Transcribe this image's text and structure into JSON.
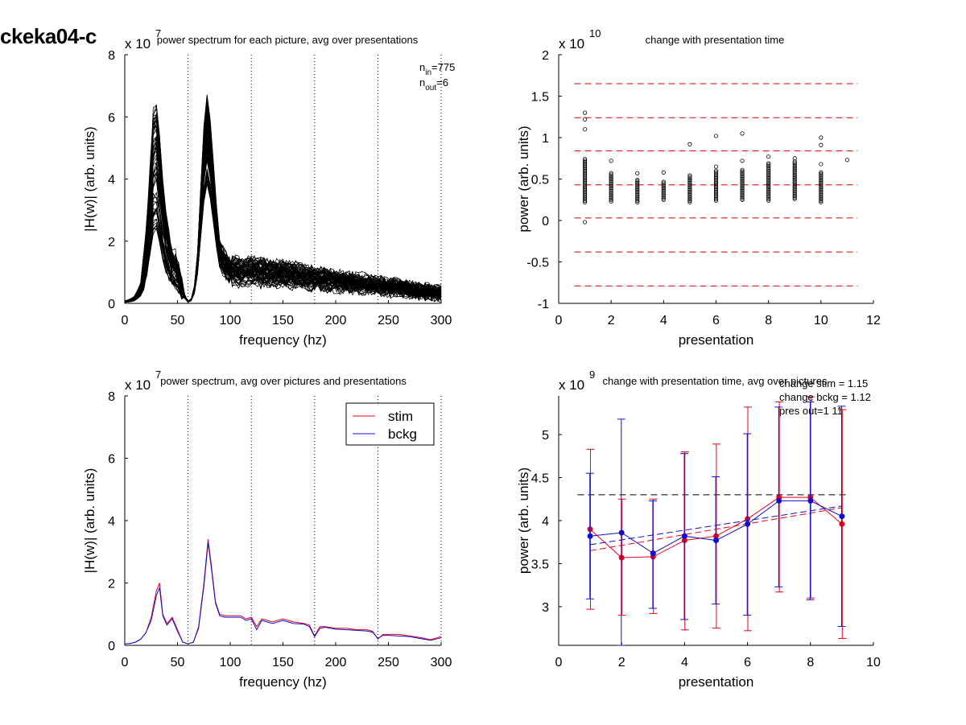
{
  "figure": {
    "title": "ckeka04-c",
    "colors": {
      "stim": "#e8001c",
      "bckg": "#1010cc",
      "ref": "#e00000",
      "axis": "#000000"
    }
  },
  "chart_data": [
    {
      "id": "p1",
      "type": "line",
      "title": "power spectrum for each picture, avg over presentations",
      "xlabel": "frequency (hz)",
      "ylabel": "|H(w)| (arb. units)",
      "exponent_label": "x 10",
      "exponent": "7",
      "xlim": [
        0,
        300
      ],
      "ylim": [
        0,
        8
      ],
      "xticks": [
        0,
        50,
        100,
        150,
        200,
        250,
        300
      ],
      "yticks": [
        0,
        2,
        4,
        6,
        8
      ],
      "vlines": [
        60,
        120,
        180,
        240,
        300
      ],
      "annotations": [
        {
          "base": "n",
          "sub": "in",
          "value": "=775"
        },
        {
          "base": "n",
          "sub": "out",
          "value": "=6"
        }
      ],
      "n_curves": 60,
      "template_curve": {
        "x": [
          0,
          5,
          10,
          15,
          20,
          25,
          28,
          31,
          35,
          40,
          45,
          50,
          55,
          60,
          65,
          70,
          74,
          78,
          82,
          86,
          90,
          95,
          100,
          110,
          120,
          130,
          150,
          170,
          200,
          230,
          260,
          280,
          300
        ],
        "y": [
          0.05,
          0.08,
          0.15,
          0.4,
          1.2,
          3.0,
          4.2,
          3.8,
          2.6,
          1.5,
          1.0,
          0.8,
          0.3,
          0.05,
          0.15,
          1.5,
          4.0,
          5.0,
          4.2,
          2.6,
          1.5,
          1.2,
          1.0,
          0.9,
          0.95,
          0.9,
          0.85,
          0.78,
          0.65,
          0.55,
          0.45,
          0.35,
          0.3
        ]
      }
    },
    {
      "id": "p2",
      "type": "scatter",
      "title": "change with presentation time",
      "xlabel": "presentation",
      "ylabel": "power (arb. units)",
      "exponent_label": "x 10",
      "exponent": "10",
      "xlim": [
        0,
        12
      ],
      "ylim": [
        -1,
        2
      ],
      "xticks": [
        0,
        2,
        4,
        6,
        8,
        10,
        12
      ],
      "yticks": [
        -1,
        -0.5,
        0,
        0.5,
        1,
        1.5,
        2
      ],
      "ytick_labels": [
        "-1",
        "-0.5",
        "0",
        "0.5",
        "1",
        "1.5",
        "2"
      ],
      "hlines": [
        1.65,
        1.24,
        0.84,
        0.43,
        0.03,
        -0.38,
        -0.79
      ],
      "clusters": [
        {
          "x": 1,
          "lo": 0.22,
          "hi": 0.75,
          "outliers": [
            1.3,
            1.22,
            1.1,
            -0.02
          ]
        },
        {
          "x": 2,
          "lo": 0.23,
          "hi": 0.58,
          "outliers": [
            0.72
          ]
        },
        {
          "x": 3,
          "lo": 0.22,
          "hi": 0.5,
          "outliers": [
            0.57
          ]
        },
        {
          "x": 4,
          "lo": 0.25,
          "hi": 0.47,
          "outliers": [
            0.58
          ]
        },
        {
          "x": 5,
          "lo": 0.22,
          "hi": 0.55,
          "outliers": [
            0.92
          ]
        },
        {
          "x": 6,
          "lo": 0.24,
          "hi": 0.6,
          "outliers": [
            1.02,
            0.65
          ]
        },
        {
          "x": 7,
          "lo": 0.25,
          "hi": 0.62,
          "outliers": [
            1.05,
            0.72
          ]
        },
        {
          "x": 8,
          "lo": 0.24,
          "hi": 0.7,
          "outliers": [
            0.77
          ]
        },
        {
          "x": 9,
          "lo": 0.26,
          "hi": 0.72,
          "outliers": [
            0.75
          ]
        },
        {
          "x": 10,
          "lo": 0.22,
          "hi": 0.58,
          "outliers": [
            1.0,
            0.91,
            0.68
          ]
        },
        {
          "x": 11,
          "lo": null,
          "hi": null,
          "outliers": [
            0.73
          ]
        }
      ]
    },
    {
      "id": "p3",
      "type": "line",
      "title": "power spectrum, avg over pictures and presentations",
      "xlabel": "frequency (hz)",
      "ylabel": "|H(w)| (arb. units)",
      "exponent_label": "x 10",
      "exponent": "7",
      "xlim": [
        0,
        300
      ],
      "ylim": [
        0,
        8
      ],
      "xticks": [
        0,
        50,
        100,
        150,
        200,
        250,
        300
      ],
      "yticks": [
        0,
        2,
        4,
        6,
        8
      ],
      "vlines": [
        60,
        120,
        180,
        240,
        300
      ],
      "legend": {
        "position": "top-right",
        "entries": [
          "stim",
          "bckg"
        ]
      },
      "x": [
        0,
        5,
        10,
        15,
        20,
        25,
        30,
        33,
        36,
        40,
        45,
        50,
        55,
        60,
        65,
        70,
        75,
        79,
        82,
        86,
        90,
        95,
        100,
        110,
        115,
        120,
        125,
        130,
        140,
        150,
        160,
        170,
        175,
        180,
        185,
        190,
        200,
        210,
        220,
        230,
        235,
        240,
        245,
        250,
        260,
        270,
        280,
        290,
        300
      ],
      "series": [
        {
          "name": "stim",
          "values": [
            0.05,
            0.06,
            0.1,
            0.2,
            0.4,
            0.9,
            1.75,
            2.0,
            1.0,
            0.7,
            0.9,
            0.5,
            0.1,
            0.05,
            0.1,
            0.6,
            2.0,
            3.4,
            2.6,
            1.4,
            1.0,
            0.95,
            0.95,
            0.95,
            0.85,
            0.9,
            0.6,
            0.85,
            0.75,
            0.85,
            0.75,
            0.7,
            0.65,
            0.3,
            0.6,
            0.6,
            0.55,
            0.55,
            0.5,
            0.5,
            0.45,
            0.2,
            0.35,
            0.35,
            0.35,
            0.3,
            0.25,
            0.18,
            0.28
          ]
        },
        {
          "name": "bckg",
          "values": [
            0.05,
            0.06,
            0.1,
            0.2,
            0.4,
            0.8,
            1.6,
            1.85,
            0.95,
            0.65,
            0.85,
            0.45,
            0.1,
            0.05,
            0.1,
            0.55,
            1.9,
            3.3,
            2.5,
            1.35,
            0.95,
            0.9,
            0.9,
            0.9,
            0.8,
            0.85,
            0.5,
            0.8,
            0.7,
            0.8,
            0.7,
            0.68,
            0.6,
            0.28,
            0.55,
            0.58,
            0.52,
            0.5,
            0.48,
            0.46,
            0.42,
            0.22,
            0.32,
            0.32,
            0.3,
            0.28,
            0.22,
            0.16,
            0.24
          ]
        }
      ]
    },
    {
      "id": "p4",
      "type": "line",
      "title": "change with presentation time, avg over pictures",
      "xlabel": "presentation",
      "ylabel": "power (arb. units)",
      "exponent_label": "x 10",
      "exponent": "9",
      "xlim": [
        0,
        10
      ],
      "ylim": [
        2.55,
        5.45
      ],
      "xticks": [
        0,
        2,
        4,
        6,
        8,
        10
      ],
      "yticks": [
        3,
        3.5,
        4,
        4.5,
        5
      ],
      "ytick_labels": [
        "3",
        "3.5",
        "4",
        "4.5",
        "5"
      ],
      "annotations": [
        "change stim = 1.15",
        "change bckg = 1.12",
        "pres out=1 11"
      ],
      "ref_hline": 4.3,
      "x": [
        1,
        2,
        3,
        4,
        5,
        6,
        7,
        8,
        9
      ],
      "series": [
        {
          "name": "stim",
          "values": [
            3.9,
            3.57,
            3.58,
            3.77,
            3.82,
            4.02,
            4.27,
            4.27,
            3.96
          ],
          "err_lo": [
            2.97,
            2.9,
            2.92,
            2.73,
            2.75,
            2.72,
            3.17,
            3.1,
            2.63
          ],
          "err_hi": [
            4.83,
            4.25,
            4.25,
            4.8,
            4.89,
            5.32,
            5.38,
            5.44,
            5.29
          ],
          "fit": [
            3.65,
            4.15
          ]
        },
        {
          "name": "bckg",
          "values": [
            3.82,
            3.86,
            3.62,
            3.82,
            3.77,
            3.96,
            4.23,
            4.23,
            4.05
          ],
          "err_lo": [
            3.09,
            2.55,
            2.98,
            2.85,
            3.03,
            2.9,
            3.23,
            3.08,
            2.77
          ],
          "err_hi": [
            4.55,
            5.18,
            4.23,
            4.78,
            4.51,
            5.01,
            5.32,
            5.38,
            5.33
          ],
          "fit": [
            3.72,
            4.17
          ]
        }
      ]
    }
  ]
}
